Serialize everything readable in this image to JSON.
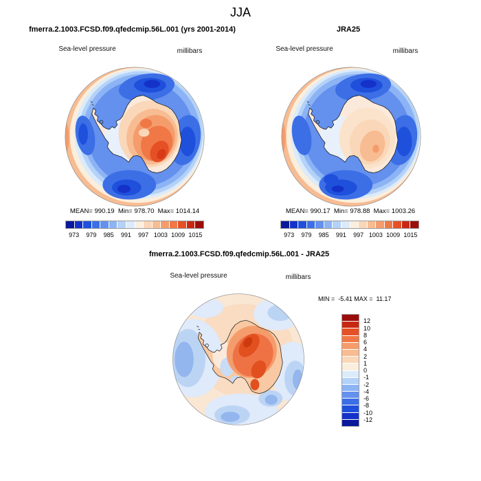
{
  "title": "JJA",
  "panels": {
    "model": {
      "title": "fmerra.2.1003.FCSD.f09.qfedcmip.56L.001 (yrs 2001-2014)",
      "field_label": "Sea-level pressure",
      "units": "millibars",
      "stats": "MEAN= 990.19  Min= 978.70  Max= 1014.14"
    },
    "reference": {
      "title": "JRA25",
      "field_label": "Sea-level pressure",
      "units": "millibars",
      "stats": "MEAN= 990.17  Min= 978.88  Max= 1003.26"
    },
    "difference": {
      "title": "fmerra.2.1003.FCSD.f09.qfedcmip.56L.001 - JRA25",
      "field_label": "Sea-level pressure",
      "units": "millibars",
      "stats": "MIN =  -5.41 MAX =  11.17"
    }
  },
  "pressure_colorbar": {
    "ticks": [
      "973",
      "979",
      "985",
      "991",
      "997",
      "1003",
      "1009",
      "1015"
    ],
    "colors": [
      "#0a189b",
      "#1431c8",
      "#1e50dc",
      "#3c6ee6",
      "#6490ee",
      "#8cb4f5",
      "#b4d2f8",
      "#dcebfa",
      "#faeedd",
      "#fad7b8",
      "#f8bc92",
      "#f59c6c",
      "#f07846",
      "#e65026",
      "#c82812",
      "#9b0d0a"
    ]
  },
  "difference_colorbar": {
    "labels": [
      "12",
      "10",
      "8",
      "6",
      "4",
      "2",
      "1",
      "0",
      "-1",
      "-2",
      "-4",
      "-6",
      "-8",
      "-10",
      "-12"
    ]
  },
  "chart_data": [
    {
      "type": "heatmap",
      "subtype": "south-polar-stereographic contour map",
      "season": "JJA",
      "title": "fmerra.2.1003.FCSD.f09.qfedcmip.56L.001 (yrs 2001-2014)",
      "variable": "Sea-level pressure",
      "units": "millibars",
      "stats": {
        "mean": 990.19,
        "min": 978.7,
        "max": 1014.14
      },
      "contour_ticks": [
        973,
        979,
        985,
        991,
        997,
        1003,
        1009,
        1015
      ],
      "palette": "16-step blue-white-red diverging",
      "legend_position": "below"
    },
    {
      "type": "heatmap",
      "subtype": "south-polar-stereographic contour map",
      "season": "JJA",
      "title": "JRA25",
      "variable": "Sea-level pressure",
      "units": "millibars",
      "stats": {
        "mean": 990.17,
        "min": 978.88,
        "max": 1003.26
      },
      "contour_ticks": [
        973,
        979,
        985,
        991,
        997,
        1003,
        1009,
        1015
      ],
      "palette": "16-step blue-white-red diverging",
      "legend_position": "below"
    },
    {
      "type": "heatmap",
      "subtype": "south-polar-stereographic difference map",
      "season": "JJA",
      "title": "fmerra.2.1003.FCSD.f09.qfedcmip.56L.001 - JRA25",
      "variable": "Sea-level pressure",
      "units": "millibars",
      "stats": {
        "min": -5.41,
        "max": 11.17
      },
      "contour_levels": [
        -12,
        -10,
        -8,
        -6,
        -4,
        -2,
        -1,
        0,
        1,
        2,
        4,
        6,
        8,
        10,
        12
      ],
      "palette": "16-step red-white-blue diverging (red = positive)",
      "legend_position": "right"
    }
  ]
}
